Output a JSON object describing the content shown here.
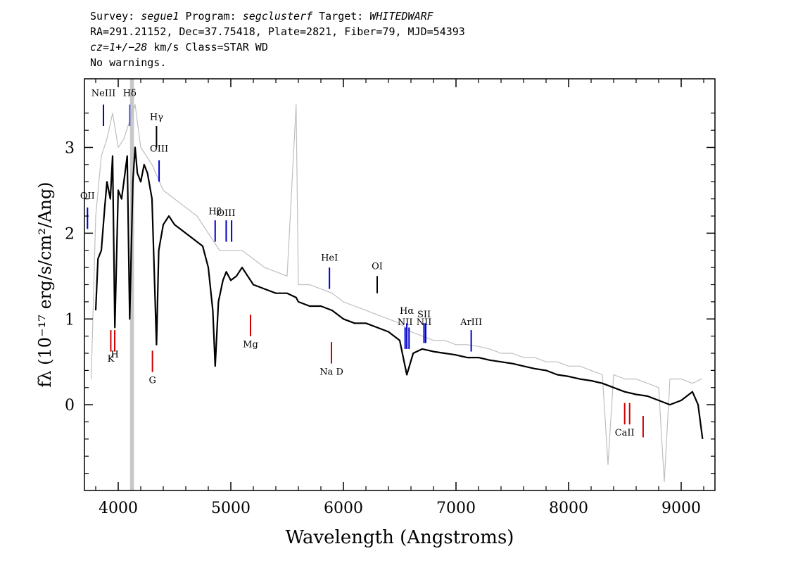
{
  "header": {
    "survey_label": "Survey:",
    "survey": "segue1",
    "program_label": "Program:",
    "program": "segclusterf",
    "target_label": "Target:",
    "target": "WHITEDWARF",
    "line2": "RA=291.21152, Dec=37.75418, Plate=2821, Fiber=79, MJD=54393",
    "cz_label": "cz=1+/−28",
    "cz_unit": "km/s Class=STAR WD",
    "line4": "No warnings."
  },
  "chart_data": {
    "type": "line",
    "xlabel": "Wavelength (Angstroms)",
    "ylabel": "fλ (10⁻¹⁷ erg/s/cm²/Ang)",
    "xlim": [
      3700,
      9300
    ],
    "ylim": [
      -1.0,
      3.8
    ],
    "x_ticks": [
      4000,
      5000,
      6000,
      7000,
      8000,
      9000
    ],
    "y_ticks": [
      0,
      1,
      2,
      3
    ],
    "grid": false,
    "masked_band": [
      4105,
      4140
    ],
    "series": [
      {
        "color": "#000000",
        "points": [
          [
            3800,
            1.1
          ],
          [
            3820,
            1.7
          ],
          [
            3850,
            1.8
          ],
          [
            3880,
            2.3
          ],
          [
            3900,
            2.6
          ],
          [
            3930,
            2.4
          ],
          [
            3950,
            2.9
          ],
          [
            3970,
            0.9
          ],
          [
            4000,
            2.5
          ],
          [
            4030,
            2.4
          ],
          [
            4060,
            2.7
          ],
          [
            4080,
            2.9
          ],
          [
            4102,
            1.0
          ],
          [
            4130,
            2.6
          ],
          [
            4150,
            3.0
          ],
          [
            4170,
            2.7
          ],
          [
            4200,
            2.6
          ],
          [
            4230,
            2.8
          ],
          [
            4260,
            2.7
          ],
          [
            4300,
            2.4
          ],
          [
            4340,
            0.7
          ],
          [
            4360,
            1.8
          ],
          [
            4400,
            2.1
          ],
          [
            4450,
            2.2
          ],
          [
            4500,
            2.1
          ],
          [
            4550,
            2.05
          ],
          [
            4600,
            2.0
          ],
          [
            4650,
            1.95
          ],
          [
            4700,
            1.9
          ],
          [
            4750,
            1.85
          ],
          [
            4800,
            1.6
          ],
          [
            4840,
            1.1
          ],
          [
            4861,
            0.45
          ],
          [
            4890,
            1.2
          ],
          [
            4930,
            1.45
          ],
          [
            4960,
            1.55
          ],
          [
            5000,
            1.45
          ],
          [
            5050,
            1.5
          ],
          [
            5100,
            1.6
          ],
          [
            5150,
            1.5
          ],
          [
            5200,
            1.4
          ],
          [
            5300,
            1.35
          ],
          [
            5400,
            1.3
          ],
          [
            5500,
            1.3
          ],
          [
            5580,
            1.25
          ],
          [
            5600,
            1.2
          ],
          [
            5700,
            1.15
          ],
          [
            5800,
            1.15
          ],
          [
            5900,
            1.1
          ],
          [
            6000,
            1.0
          ],
          [
            6100,
            0.95
          ],
          [
            6200,
            0.95
          ],
          [
            6300,
            0.9
          ],
          [
            6400,
            0.85
          ],
          [
            6500,
            0.75
          ],
          [
            6563,
            0.35
          ],
          [
            6620,
            0.6
          ],
          [
            6700,
            0.65
          ],
          [
            6800,
            0.62
          ],
          [
            6900,
            0.6
          ],
          [
            7000,
            0.58
          ],
          [
            7100,
            0.55
          ],
          [
            7200,
            0.55
          ],
          [
            7300,
            0.52
          ],
          [
            7400,
            0.5
          ],
          [
            7500,
            0.48
          ],
          [
            7600,
            0.45
          ],
          [
            7700,
            0.42
          ],
          [
            7800,
            0.4
          ],
          [
            7900,
            0.35
          ],
          [
            8000,
            0.33
          ],
          [
            8100,
            0.3
          ],
          [
            8200,
            0.28
          ],
          [
            8300,
            0.25
          ],
          [
            8400,
            0.2
          ],
          [
            8500,
            0.15
          ],
          [
            8600,
            0.12
          ],
          [
            8700,
            0.1
          ],
          [
            8800,
            0.05
          ],
          [
            8900,
            0.0
          ],
          [
            9000,
            0.05
          ],
          [
            9100,
            0.15
          ],
          [
            9150,
            0.0
          ],
          [
            9190,
            -0.4
          ]
        ]
      },
      {
        "color": "#bfbfbf",
        "points": [
          [
            3760,
            0.3
          ],
          [
            3800,
            2.2
          ],
          [
            3850,
            2.9
          ],
          [
            3900,
            3.1
          ],
          [
            3950,
            3.4
          ],
          [
            4000,
            3.0
          ],
          [
            4050,
            3.1
          ],
          [
            4150,
            3.5
          ],
          [
            4200,
            3.0
          ],
          [
            4300,
            2.8
          ],
          [
            4400,
            2.5
          ],
          [
            4500,
            2.4
          ],
          [
            4600,
            2.3
          ],
          [
            4700,
            2.2
          ],
          [
            4800,
            2.0
          ],
          [
            4900,
            1.8
          ],
          [
            5000,
            1.8
          ],
          [
            5100,
            1.8
          ],
          [
            5200,
            1.7
          ],
          [
            5300,
            1.6
          ],
          [
            5400,
            1.55
          ],
          [
            5500,
            1.5
          ],
          [
            5580,
            3.5
          ],
          [
            5600,
            1.4
          ],
          [
            5700,
            1.4
          ],
          [
            5800,
            1.35
          ],
          [
            5900,
            1.3
          ],
          [
            6000,
            1.2
          ],
          [
            6100,
            1.15
          ],
          [
            6200,
            1.1
          ],
          [
            6300,
            1.05
          ],
          [
            6400,
            1.0
          ],
          [
            6500,
            0.95
          ],
          [
            6600,
            0.85
          ],
          [
            6700,
            0.8
          ],
          [
            6800,
            0.75
          ],
          [
            6900,
            0.75
          ],
          [
            7000,
            0.7
          ],
          [
            7100,
            0.7
          ],
          [
            7200,
            0.68
          ],
          [
            7300,
            0.65
          ],
          [
            7400,
            0.6
          ],
          [
            7500,
            0.6
          ],
          [
            7600,
            0.55
          ],
          [
            7700,
            0.55
          ],
          [
            7800,
            0.5
          ],
          [
            7900,
            0.5
          ],
          [
            8000,
            0.45
          ],
          [
            8100,
            0.45
          ],
          [
            8200,
            0.4
          ],
          [
            8300,
            0.35
          ],
          [
            8350,
            -0.7
          ],
          [
            8400,
            0.35
          ],
          [
            8500,
            0.3
          ],
          [
            8600,
            0.3
          ],
          [
            8700,
            0.25
          ],
          [
            8800,
            0.2
          ],
          [
            8850,
            -0.9
          ],
          [
            8900,
            0.3
          ],
          [
            9000,
            0.3
          ],
          [
            9100,
            0.25
          ],
          [
            9180,
            0.3
          ]
        ]
      }
    ],
    "line_markers": [
      {
        "label": "NeIII",
        "x": 3869,
        "y0": 3.25,
        "y1": 3.5,
        "color": "#0000cc",
        "label_y": 3.6
      },
      {
        "label": "Hδ",
        "x": 4102,
        "y0": 3.25,
        "y1": 3.5,
        "color": "#5555dd",
        "label_y": 3.6
      },
      {
        "label": "Hγ",
        "x": 4340,
        "y0": 3.0,
        "y1": 3.25,
        "color": "#000000",
        "label_y": 3.32
      },
      {
        "label": "OIII",
        "x": 4363,
        "y0": 2.6,
        "y1": 2.85,
        "color": "#0000cc",
        "label_y": 2.95
      },
      {
        "label": "OII",
        "x": 3727,
        "y0": 2.05,
        "y1": 2.3,
        "color": "#0000cc",
        "label_y": 2.4
      },
      {
        "label": "Hβ",
        "x": 4861,
        "y0": 1.9,
        "y1": 2.15,
        "color": "#0000cc",
        "label_y": 2.22
      },
      {
        "label": "OIII",
        "x": 4959,
        "y0": 1.9,
        "y1": 2.15,
        "color": "#0000cc",
        "label_y": 2.2
      },
      {
        "label": "",
        "x": 5007,
        "y0": 1.9,
        "y1": 2.15,
        "color": "#0000cc"
      },
      {
        "label": "HeI",
        "x": 5876,
        "y0": 1.35,
        "y1": 1.6,
        "color": "#0000cc",
        "label_y": 1.68
      },
      {
        "label": "OI",
        "x": 6300,
        "y0": 1.3,
        "y1": 1.5,
        "color": "#000000",
        "label_y": 1.58
      },
      {
        "label": "NII",
        "x": 6548,
        "y0": 0.65,
        "y1": 0.9,
        "color": "#0000cc",
        "label_y": 0.93
      },
      {
        "label": "Hα",
        "x": 6563,
        "y0": 0.65,
        "y1": 0.95,
        "color": "#0000cc",
        "label_y": 1.06
      },
      {
        "label": "NII",
        "x": 6583,
        "y0": 0.65,
        "y1": 0.9,
        "color": "#0000cc"
      },
      {
        "label": "SII",
        "x": 6716,
        "y0": 0.72,
        "y1": 0.95,
        "color": "#0000cc",
        "label_y": 1.02
      },
      {
        "label": "NII",
        "x": 6716,
        "y0": 0.72,
        "y1": 0.95,
        "color": "#0000cc",
        "label_y": 0.93
      },
      {
        "label": "",
        "x": 6731,
        "y0": 0.72,
        "y1": 0.95,
        "color": "#0000cc"
      },
      {
        "label": "ArIII",
        "x": 7135,
        "y0": 0.62,
        "y1": 0.87,
        "color": "#0000cc",
        "label_y": 0.93
      },
      {
        "label": "K",
        "x": 3934,
        "y0": 0.62,
        "y1": 0.87,
        "color": "#cc0000",
        "label_y": 0.5
      },
      {
        "label": "H",
        "x": 3969,
        "y0": 0.62,
        "y1": 0.87,
        "color": "#cc0000",
        "label_y": 0.55
      },
      {
        "label": "G",
        "x": 4304,
        "y0": 0.38,
        "y1": 0.63,
        "color": "#cc0000",
        "label_y": 0.25
      },
      {
        "label": "Mg",
        "x": 5175,
        "y0": 0.8,
        "y1": 1.05,
        "color": "#cc0000",
        "label_y": 0.67
      },
      {
        "label": "Na D",
        "x": 5894,
        "y0": 0.48,
        "y1": 0.73,
        "color": "#cc0000",
        "label_y": 0.35
      },
      {
        "label": "CaII",
        "x": 8498,
        "y0": -0.23,
        "y1": 0.02,
        "color": "#cc0000",
        "label_y": -0.36
      },
      {
        "label": "",
        "x": 8542,
        "y0": -0.23,
        "y1": 0.02,
        "color": "#cc0000"
      },
      {
        "label": "",
        "x": 8662,
        "y0": -0.38,
        "y1": -0.13,
        "color": "#cc0000"
      }
    ]
  }
}
